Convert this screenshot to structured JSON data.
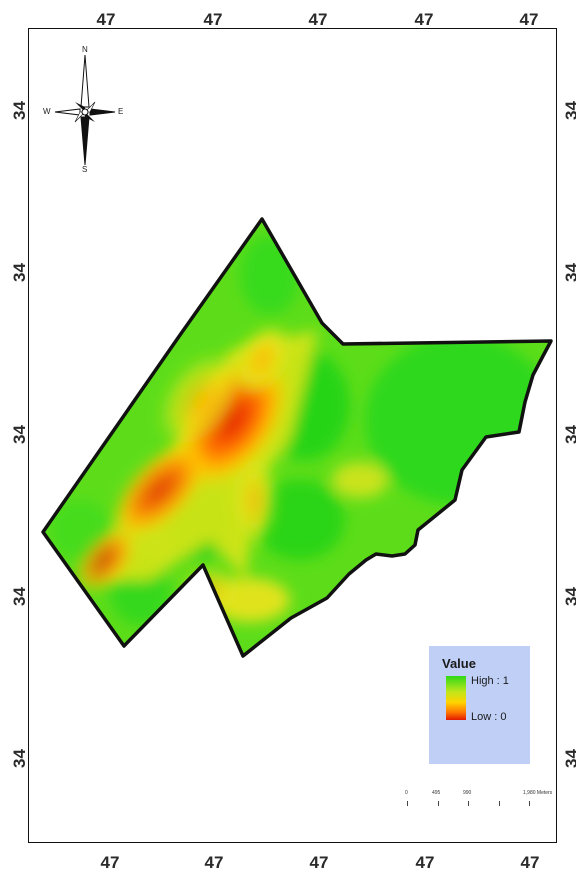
{
  "axis_ticks": {
    "top": [
      "47",
      "47",
      "47",
      "47",
      "47"
    ],
    "bottom": [
      "47",
      "47",
      "47",
      "47",
      "47"
    ],
    "left": [
      "34",
      "34",
      "34",
      "34",
      "34"
    ],
    "right": [
      "34",
      "34",
      "34",
      "34",
      "34"
    ]
  },
  "compass": {
    "n": "N",
    "s": "S",
    "e": "E",
    "w": "W"
  },
  "legend": {
    "title": "Value",
    "high": "High : 1",
    "low": "Low : 0"
  },
  "scale_bar": {
    "labels": [
      "0",
      "495",
      "990",
      "1,980 Meters"
    ]
  },
  "colors": {
    "high": "#2fd81a",
    "mid": "#ffd400",
    "low": "#e01a00",
    "legend_background": "#bfcff6"
  }
}
